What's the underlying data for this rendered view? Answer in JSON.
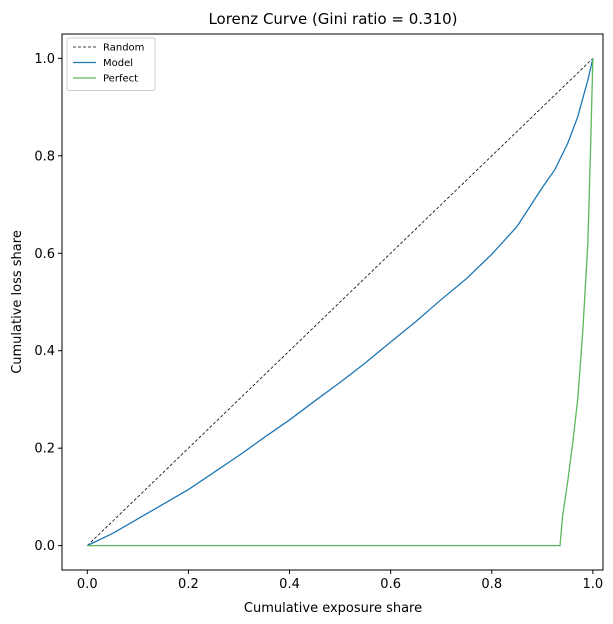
{
  "chart_data": {
    "type": "line",
    "title": "Lorenz Curve (Gini ratio = 0.310)",
    "xlabel": "Cumulative exposure share",
    "ylabel": "Cumulative loss share",
    "xlim": [
      -0.05,
      1.02
    ],
    "ylim": [
      -0.05,
      1.05
    ],
    "xticks": [
      0.0,
      0.2,
      0.4,
      0.6,
      0.8,
      1.0
    ],
    "yticks": [
      0.0,
      0.2,
      0.4,
      0.6,
      0.8,
      1.0
    ],
    "xtick_labels": [
      "0.0",
      "0.2",
      "0.4",
      "0.6",
      "0.8",
      "1.0"
    ],
    "ytick_labels": [
      "0.0",
      "0.2",
      "0.4",
      "0.6",
      "0.8",
      "1.0"
    ],
    "grid": false,
    "legend_position": "top-left",
    "series": [
      {
        "name": "Random",
        "color": "#000000",
        "style": "dashed",
        "x": [
          0.0,
          1.0
        ],
        "y": [
          0.0,
          1.0
        ]
      },
      {
        "name": "Model",
        "color": "#1f77b4",
        "style": "solid",
        "x": [
          0.0,
          0.05,
          0.1,
          0.15,
          0.2,
          0.25,
          0.3,
          0.35,
          0.4,
          0.45,
          0.5,
          0.55,
          0.6,
          0.65,
          0.7,
          0.75,
          0.8,
          0.85,
          0.9,
          0.925,
          0.95,
          0.97,
          0.98,
          0.99,
          1.0
        ],
        "y": [
          0.0,
          0.025,
          0.055,
          0.085,
          0.115,
          0.15,
          0.185,
          0.222,
          0.258,
          0.297,
          0.335,
          0.375,
          0.418,
          0.46,
          0.505,
          0.548,
          0.598,
          0.655,
          0.735,
          0.772,
          0.825,
          0.88,
          0.918,
          0.955,
          1.0
        ]
      },
      {
        "name": "Perfect",
        "color": "#5cb85c",
        "style": "solid",
        "x": [
          0.0,
          0.935,
          0.94,
          0.95,
          0.96,
          0.97,
          0.98,
          0.99,
          0.995,
          1.0
        ],
        "y": [
          0.0,
          0.0,
          0.06,
          0.13,
          0.21,
          0.3,
          0.44,
          0.62,
          0.8,
          1.0
        ]
      }
    ]
  }
}
